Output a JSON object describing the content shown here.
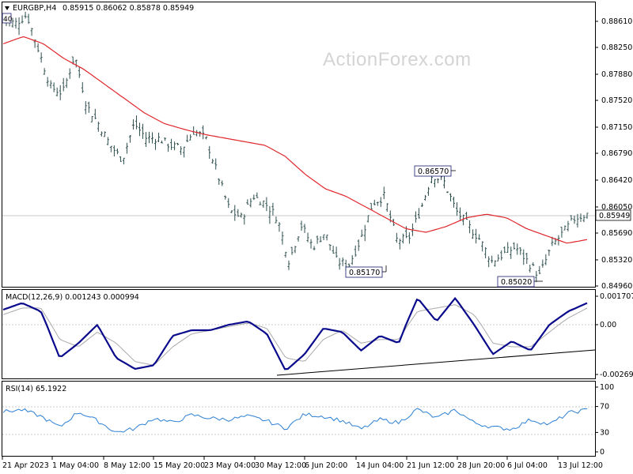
{
  "watermark": "ActionForex.com",
  "header": {
    "symbol": "EURGBP,H4",
    "ohlc": "0.85915 0.86062 0.85878 0.85949",
    "period_box": "40"
  },
  "colors": {
    "candle": "#2f4f4f",
    "moving_average": "#e0262b",
    "macd": "#0a0a8c",
    "signal": "#aaaaaa",
    "rsi": "#2a7fd4",
    "trendline": "#000000",
    "grid_ref": "#c8c8c8",
    "annotation_border": "#1a1a6e"
  },
  "chart_data": [
    {
      "type": "line",
      "subtype": "candlestick",
      "series": [
        {
          "name": "price",
          "values_sampled": [
            0.8865,
            0.8858,
            0.887,
            0.882,
            0.877,
            0.8762,
            0.8815,
            0.8745,
            0.872,
            0.869,
            0.867,
            0.872,
            0.87,
            0.87,
            0.869,
            0.8685,
            0.871,
            0.87,
            0.865,
            0.86,
            0.859,
            0.862,
            0.861,
            0.859,
            0.853,
            0.858,
            0.855,
            0.857,
            0.853,
            0.8525,
            0.856,
            0.861,
            0.862,
            0.856,
            0.856,
            0.86,
            0.865,
            0.864,
            0.86,
            0.858,
            0.856,
            0.853,
            0.854,
            0.855,
            0.853,
            0.851,
            0.855,
            0.857,
            0.859,
            0.8595
          ]
        },
        {
          "name": "moving-average",
          "values_sampled": [
            0.883,
            0.884,
            0.883,
            0.881,
            0.8795,
            0.8775,
            0.8755,
            0.8735,
            0.872,
            0.8712,
            0.8705,
            0.87,
            0.8695,
            0.869,
            0.8675,
            0.865,
            0.863,
            0.862,
            0.8605,
            0.859,
            0.8575,
            0.857,
            0.8578,
            0.859,
            0.8595,
            0.859,
            0.8575,
            0.8565,
            0.8555,
            0.856
          ]
        }
      ],
      "y_ticks": [
        "0.88610",
        "0.88250",
        "0.87880",
        "0.87520",
        "0.87150",
        "0.86790",
        "0.86420",
        "0.86050",
        "0.85690",
        "0.85320",
        "0.84960"
      ],
      "current_price": "0.85949",
      "annotations": [
        "0.86570",
        "0.85170",
        "0.85020"
      ],
      "ylim": [
        0.8478,
        0.8892
      ]
    },
    {
      "type": "line",
      "title": "MACD(12,26,9) 0.001243 0.000994",
      "y_ticks": [
        "0.001707",
        "0.00",
        "-0.002699"
      ],
      "series": [
        {
          "name": "macd",
          "values_sampled": [
            0.0009,
            0.0013,
            0.0008,
            -0.0018,
            -0.001,
            0.0,
            -0.0018,
            -0.0024,
            -0.0022,
            -0.0006,
            -0.0003,
            -0.0003,
            0.0,
            0.0002,
            -0.0005,
            -0.0025,
            -0.0016,
            -0.0002,
            -0.0004,
            -0.0014,
            -0.0006,
            -0.001,
            0.0016,
            0.0002,
            0.0016,
            0.0,
            -0.0016,
            -0.0009,
            -0.0014,
            0.0,
            0.0008,
            0.0013
          ]
        },
        {
          "name": "signal",
          "values_sampled": [
            0.0006,
            0.001,
            0.001,
            -0.0008,
            -0.0012,
            -0.0004,
            -0.001,
            -0.002,
            -0.0022,
            -0.0012,
            -0.0005,
            -0.0003,
            -0.0001,
            0.0001,
            -0.0002,
            -0.0018,
            -0.002,
            -0.0008,
            -0.0003,
            -0.001,
            -0.0008,
            -0.0008,
            0.0008,
            0.001,
            0.0012,
            0.0006,
            -0.001,
            -0.0012,
            -0.0012,
            -0.0004,
            0.0004,
            0.001
          ]
        }
      ]
    },
    {
      "type": "line",
      "title": "RSI(14) 65.1922",
      "y_ticks": [
        "100",
        "70",
        "30",
        "0"
      ],
      "series": [
        {
          "name": "rsi",
          "values_sampled": [
            62,
            65,
            55,
            38,
            62,
            48,
            30,
            36,
            52,
            45,
            57,
            52,
            50,
            55,
            48,
            36,
            58,
            55,
            48,
            35,
            50,
            45,
            66,
            52,
            65,
            45,
            38,
            35,
            50,
            42,
            60,
            65
          ]
        }
      ],
      "ylim": [
        0,
        100
      ]
    }
  ],
  "x_axis": {
    "labels": [
      "21 Apr 2023",
      "1 May 04:00",
      "8 May 12:00",
      "15 May 20:00",
      "23 May 04:00",
      "30 May 12:00",
      "6 Jun 20:00",
      "14 Jun 04:00",
      "21 Jun 12:00",
      "28 Jun 20:00",
      "6 Jul 04:00",
      "13 Jul 12:00"
    ]
  }
}
